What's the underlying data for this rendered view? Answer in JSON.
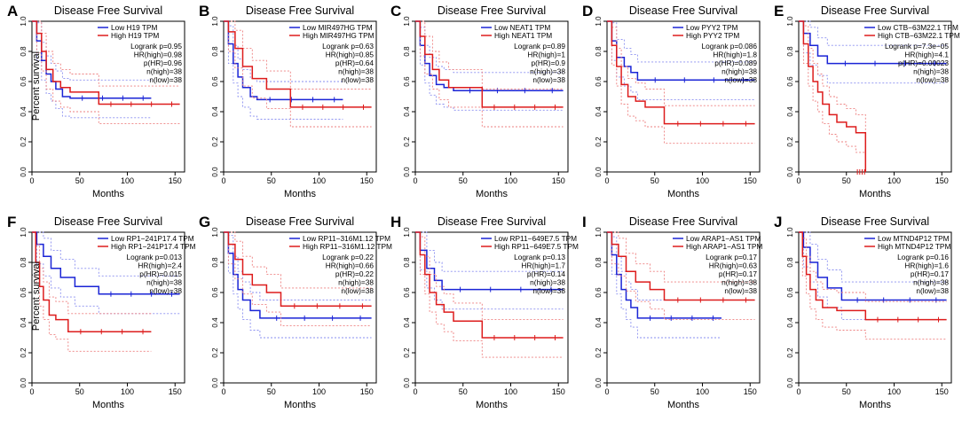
{
  "figure": {
    "ylabel": "Percent survival",
    "colors": {
      "low": "#1a24d6",
      "high": "#dd1c1c",
      "low_ci": "#8a8ff0",
      "high_ci": "#ee8080",
      "axis": "#000000"
    }
  },
  "chart_data": [
    {
      "type": "line",
      "panel_label": "A",
      "title": "Disease Free Survival",
      "xlabel": "Months",
      "xlim": [
        0,
        160
      ],
      "ylim": [
        0,
        1
      ],
      "xticks": [
        0,
        50,
        100,
        150
      ],
      "yticks": [
        0.0,
        0.2,
        0.4,
        0.6,
        0.8,
        1.0
      ],
      "legend": [
        "Low H19 TPM",
        "High H19 TPM"
      ],
      "stats": [
        "Logrank p=0.95",
        "HR(high)=0.98",
        "p(HR)=0.96",
        "n(high)=38",
        "n(low)=38"
      ],
      "series": [
        {
          "name": "Low H19 TPM",
          "x": [
            0,
            5,
            10,
            15,
            20,
            25,
            32,
            40,
            125
          ],
          "y": [
            1,
            0.87,
            0.74,
            0.65,
            0.6,
            0.55,
            0.5,
            0.49,
            0.49
          ]
        },
        {
          "name": "High H19 TPM",
          "x": [
            0,
            5,
            10,
            15,
            22,
            30,
            40,
            70,
            155
          ],
          "y": [
            1,
            0.92,
            0.8,
            0.68,
            0.6,
            0.56,
            0.53,
            0.45,
            0.45
          ]
        }
      ]
    },
    {
      "type": "line",
      "panel_label": "B",
      "title": "Disease Free Survival",
      "xlabel": "Months",
      "xlim": [
        0,
        160
      ],
      "ylim": [
        0,
        1
      ],
      "xticks": [
        0,
        50,
        100,
        150
      ],
      "yticks": [
        0.0,
        0.2,
        0.4,
        0.6,
        0.8,
        1.0
      ],
      "legend": [
        "Low MIR497HG TPM",
        "High MIR497HG TPM"
      ],
      "stats": [
        "Logrank p=0.63",
        "HR(high)=0.85",
        "p(HR)=0.64",
        "n(high)=38",
        "n(low)=38"
      ],
      "series": [
        {
          "name": "Low MIR497HG TPM",
          "x": [
            0,
            5,
            10,
            15,
            20,
            28,
            35,
            125
          ],
          "y": [
            1,
            0.85,
            0.72,
            0.63,
            0.56,
            0.5,
            0.48,
            0.48
          ]
        },
        {
          "name": "High MIR497HG TPM",
          "x": [
            0,
            5,
            12,
            20,
            30,
            45,
            70,
            155
          ],
          "y": [
            1,
            0.93,
            0.82,
            0.7,
            0.62,
            0.55,
            0.43,
            0.43
          ]
        }
      ]
    },
    {
      "type": "line",
      "panel_label": "C",
      "title": "Disease Free Survival",
      "xlabel": "Months",
      "xlim": [
        0,
        160
      ],
      "ylim": [
        0,
        1
      ],
      "xticks": [
        0,
        50,
        100,
        150
      ],
      "yticks": [
        0.0,
        0.2,
        0.4,
        0.6,
        0.8,
        1.0
      ],
      "legend": [
        "Low NEAT1 TPM",
        "High NEAT1 TPM"
      ],
      "stats": [
        "Logrank p=0.89",
        "HR(high)=1",
        "p(HR)=0.9",
        "n(high)=38",
        "n(low)=38"
      ],
      "series": [
        {
          "name": "Low NEAT1 TPM",
          "x": [
            0,
            5,
            10,
            15,
            22,
            30,
            40,
            155
          ],
          "y": [
            1,
            0.84,
            0.72,
            0.64,
            0.58,
            0.56,
            0.54,
            0.54
          ]
        },
        {
          "name": "High NEAT1 TPM",
          "x": [
            0,
            5,
            10,
            18,
            25,
            35,
            70,
            155
          ],
          "y": [
            1,
            0.9,
            0.78,
            0.68,
            0.61,
            0.56,
            0.43,
            0.43
          ]
        }
      ]
    },
    {
      "type": "line",
      "panel_label": "D",
      "title": "Disease Free Survival",
      "xlabel": "Months",
      "xlim": [
        0,
        160
      ],
      "ylim": [
        0,
        1
      ],
      "xticks": [
        0,
        50,
        100,
        150
      ],
      "yticks": [
        0.0,
        0.2,
        0.4,
        0.6,
        0.8,
        1.0
      ],
      "legend": [
        "Low PYY2 TPM",
        "High PYY2 TPM"
      ],
      "stats": [
        "Logrank p=0.086",
        "HR(high)=1.8",
        "p(HR)=0.089",
        "n(high)=38",
        "n(low)=38"
      ],
      "series": [
        {
          "name": "Low PYY2 TPM",
          "x": [
            0,
            5,
            10,
            18,
            25,
            32,
            155
          ],
          "y": [
            1,
            0.87,
            0.76,
            0.7,
            0.66,
            0.61,
            0.61
          ]
        },
        {
          "name": "High PYY2 TPM",
          "x": [
            0,
            5,
            10,
            15,
            22,
            30,
            40,
            60,
            155
          ],
          "y": [
            1,
            0.84,
            0.7,
            0.58,
            0.5,
            0.47,
            0.43,
            0.32,
            0.32
          ]
        }
      ]
    },
    {
      "type": "line",
      "panel_label": "E",
      "title": "Disease Free Survival",
      "xlabel": "Months",
      "xlim": [
        0,
        160
      ],
      "ylim": [
        0,
        1
      ],
      "xticks": [
        0,
        50,
        100,
        150
      ],
      "yticks": [
        0.0,
        0.2,
        0.4,
        0.6,
        0.8,
        1.0
      ],
      "legend": [
        "Low CTB−63M22.1 TPM",
        "High CTB−63M22.1 TPM"
      ],
      "stats": [
        "Logrank p=7.3e−05",
        "HR(high)=4.1",
        "p(HR)=0.00023",
        "n(high)=38",
        "n(low)=38"
      ],
      "series": [
        {
          "name": "Low CTB−63M22.1 TPM",
          "x": [
            0,
            5,
            12,
            20,
            30,
            155
          ],
          "y": [
            1,
            0.92,
            0.84,
            0.77,
            0.72,
            0.72
          ]
        },
        {
          "name": "High CTB−63M22.1 TPM",
          "x": [
            0,
            5,
            10,
            15,
            20,
            25,
            32,
            40,
            50,
            60,
            70
          ],
          "y": [
            1,
            0.85,
            0.7,
            0.6,
            0.53,
            0.45,
            0.38,
            0.33,
            0.3,
            0.26,
            0
          ]
        }
      ]
    },
    {
      "type": "line",
      "panel_label": "F",
      "title": "Disease Free Survival",
      "xlabel": "Months",
      "xlim": [
        0,
        160
      ],
      "ylim": [
        0,
        1
      ],
      "xticks": [
        0,
        50,
        100,
        150
      ],
      "yticks": [
        0.0,
        0.2,
        0.4,
        0.6,
        0.8,
        1.0
      ],
      "legend": [
        "Low RP1−241P17.4 TPM",
        "High RP1−241P17.4 TPM"
      ],
      "stats": [
        "Logrank p=0.013",
        "HR(high)=2.4",
        "p(HR)=0.015",
        "n(high)=38",
        "n(low)=38"
      ],
      "series": [
        {
          "name": "Low RP1−241P17.4 TPM",
          "x": [
            0,
            5,
            12,
            20,
            30,
            45,
            70,
            155
          ],
          "y": [
            1,
            0.92,
            0.84,
            0.76,
            0.7,
            0.64,
            0.59,
            0.59
          ]
        },
        {
          "name": "High RP1−241P17.4 TPM",
          "x": [
            0,
            4,
            8,
            12,
            18,
            25,
            38,
            125
          ],
          "y": [
            1,
            0.8,
            0.64,
            0.55,
            0.45,
            0.42,
            0.34,
            0.34
          ]
        }
      ]
    },
    {
      "type": "line",
      "panel_label": "G",
      "title": "Disease Free Survival",
      "xlabel": "Months",
      "xlim": [
        0,
        160
      ],
      "ylim": [
        0,
        1
      ],
      "xticks": [
        0,
        50,
        100,
        150
      ],
      "yticks": [
        0.0,
        0.2,
        0.4,
        0.6,
        0.8,
        1.0
      ],
      "legend": [
        "Low RP11−316M1.12 TPM",
        "High RP11−316M1.12 TPM"
      ],
      "stats": [
        "Logrank p=0.22",
        "HR(high)=0.66",
        "p(HR)=0.22",
        "n(high)=38",
        "n(low)=38"
      ],
      "series": [
        {
          "name": "Low RP11−316M1.12 TPM",
          "x": [
            0,
            5,
            10,
            15,
            20,
            28,
            38,
            155
          ],
          "y": [
            1,
            0.86,
            0.72,
            0.62,
            0.55,
            0.48,
            0.43,
            0.43
          ]
        },
        {
          "name": "High RP11−316M1.12 TPM",
          "x": [
            0,
            5,
            12,
            20,
            30,
            45,
            60,
            155
          ],
          "y": [
            1,
            0.92,
            0.82,
            0.72,
            0.65,
            0.6,
            0.51,
            0.51
          ]
        }
      ]
    },
    {
      "type": "line",
      "panel_label": "H",
      "title": "Disease Free Survival",
      "xlabel": "Months",
      "xlim": [
        0,
        160
      ],
      "ylim": [
        0,
        1
      ],
      "xticks": [
        0,
        50,
        100,
        150
      ],
      "yticks": [
        0.0,
        0.2,
        0.4,
        0.6,
        0.8,
        1.0
      ],
      "legend": [
        "Low RP11−649E7.5 TPM",
        "High RP11−649E7.5 TPM"
      ],
      "stats": [
        "Logrank p=0.13",
        "HR(high)=1.7",
        "p(HR)=0.14",
        "n(high)=38",
        "n(low)=38"
      ],
      "series": [
        {
          "name": "Low RP11−649E7.5 TPM",
          "x": [
            0,
            5,
            12,
            20,
            28,
            155
          ],
          "y": [
            1,
            0.88,
            0.76,
            0.68,
            0.62,
            0.62
          ]
        },
        {
          "name": "High RP11−649E7.5 TPM",
          "x": [
            0,
            5,
            10,
            15,
            22,
            30,
            40,
            70,
            155
          ],
          "y": [
            1,
            0.85,
            0.72,
            0.6,
            0.52,
            0.47,
            0.41,
            0.3,
            0.3
          ]
        }
      ]
    },
    {
      "type": "line",
      "panel_label": "I",
      "title": "Disease Free Survival",
      "xlabel": "Months",
      "xlim": [
        0,
        160
      ],
      "ylim": [
        0,
        1
      ],
      "xticks": [
        0,
        50,
        100,
        150
      ],
      "yticks": [
        0.0,
        0.2,
        0.4,
        0.6,
        0.8,
        1.0
      ],
      "legend": [
        "Low ARAP1−AS1 TPM",
        "High ARAP1−AS1 TPM"
      ],
      "stats": [
        "Logrank p=0.17",
        "HR(high)=0.63",
        "p(HR)=0.17",
        "n(high)=38",
        "n(low)=38"
      ],
      "series": [
        {
          "name": "Low ARAP1−AS1 TPM",
          "x": [
            0,
            5,
            10,
            15,
            20,
            25,
            32,
            120
          ],
          "y": [
            1,
            0.85,
            0.72,
            0.62,
            0.55,
            0.5,
            0.43,
            0.43
          ]
        },
        {
          "name": "High ARAP1−AS1 TPM",
          "x": [
            0,
            5,
            12,
            20,
            30,
            45,
            60,
            155
          ],
          "y": [
            1,
            0.92,
            0.84,
            0.74,
            0.67,
            0.62,
            0.55,
            0.55
          ]
        }
      ]
    },
    {
      "type": "line",
      "panel_label": "J",
      "title": "Disease Free Survival",
      "xlabel": "Months",
      "xlim": [
        0,
        160
      ],
      "ylim": [
        0,
        1
      ],
      "xticks": [
        0,
        50,
        100,
        150
      ],
      "yticks": [
        0.0,
        0.2,
        0.4,
        0.6,
        0.8,
        1.0
      ],
      "legend": [
        "Low MTND4P12 TPM",
        "High MTND4P12 TPM"
      ],
      "stats": [
        "Logrank p=0.16",
        "HR(high)=1.6",
        "p(HR)=0.17",
        "n(high)=38",
        "n(low)=38"
      ],
      "series": [
        {
          "name": "Low MTND4P12 TPM",
          "x": [
            0,
            5,
            12,
            20,
            30,
            45,
            155
          ],
          "y": [
            1,
            0.9,
            0.8,
            0.7,
            0.63,
            0.55,
            0.55
          ]
        },
        {
          "name": "High MTND4P12 TPM",
          "x": [
            0,
            4,
            8,
            12,
            18,
            25,
            40,
            70,
            155
          ],
          "y": [
            1,
            0.84,
            0.72,
            0.62,
            0.55,
            0.5,
            0.48,
            0.42,
            0.42
          ]
        }
      ]
    }
  ]
}
